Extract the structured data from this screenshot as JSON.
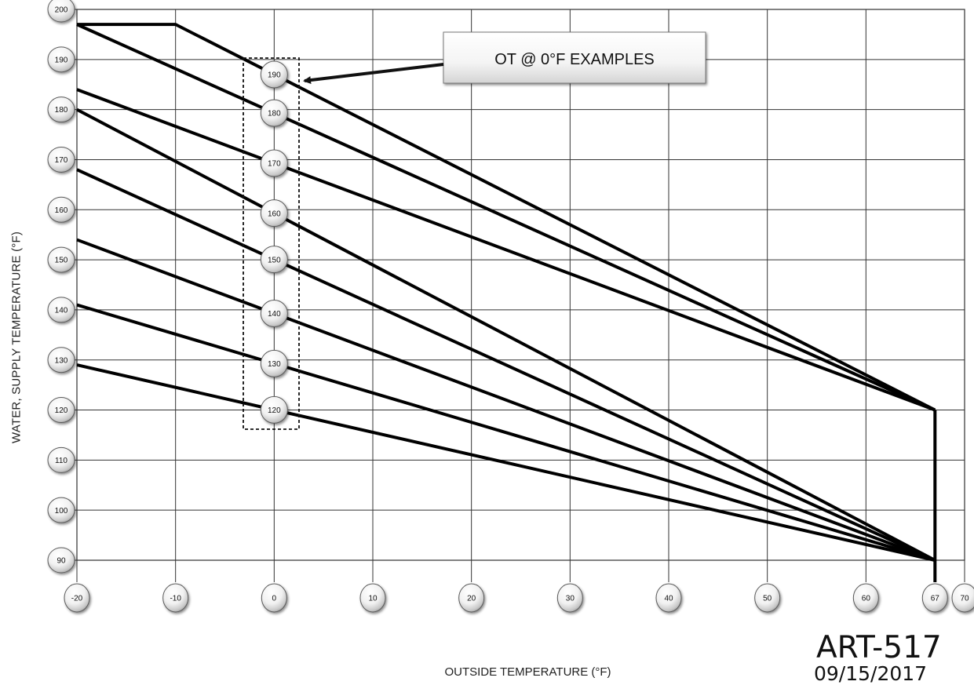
{
  "chart_data": {
    "type": "line",
    "title": "",
    "xlabel": "OUTSIDE TEMPERATURE (°F)",
    "ylabel": "WATER, SUPPLY TEMPERATURE (°F)",
    "xlim": [
      -20,
      70
    ],
    "ylim": [
      90,
      200
    ],
    "x_ticks": [
      "-20",
      "-10",
      "0",
      "10",
      "20",
      "30",
      "40",
      "50",
      "60",
      "67",
      "70"
    ],
    "y_ticks": [
      "90",
      "100",
      "110",
      "120",
      "130",
      "140",
      "150",
      "160",
      "170",
      "180",
      "190",
      "200"
    ],
    "grid": true,
    "callout": "OT @ 0°F EXAMPLES",
    "series": [
      {
        "label": "190",
        "x": [
          -20,
          -10,
          67
        ],
        "y": [
          197,
          197,
          120
        ]
      },
      {
        "label": "180",
        "x": [
          -20,
          67
        ],
        "y": [
          197,
          120
        ]
      },
      {
        "label": "170",
        "x": [
          -20,
          67
        ],
        "y": [
          184,
          120
        ]
      },
      {
        "label": "160",
        "x": [
          -20,
          67
        ],
        "y": [
          180,
          90
        ]
      },
      {
        "label": "150",
        "x": [
          -20,
          67
        ],
        "y": [
          168,
          90
        ]
      },
      {
        "label": "140",
        "x": [
          -20,
          67
        ],
        "y": [
          154,
          90
        ]
      },
      {
        "label": "130",
        "x": [
          -20,
          67
        ],
        "y": [
          141,
          90
        ]
      },
      {
        "label": "120",
        "x": [
          -20,
          67
        ],
        "y": [
          129,
          90
        ]
      }
    ],
    "vertical_line": {
      "x": 67,
      "y": [
        90,
        120
      ]
    },
    "bottom_stub": {
      "x": 67,
      "y": [
        90,
        89
      ]
    }
  },
  "footer": {
    "art_id": "ART-517",
    "date": "09/15/2017"
  }
}
